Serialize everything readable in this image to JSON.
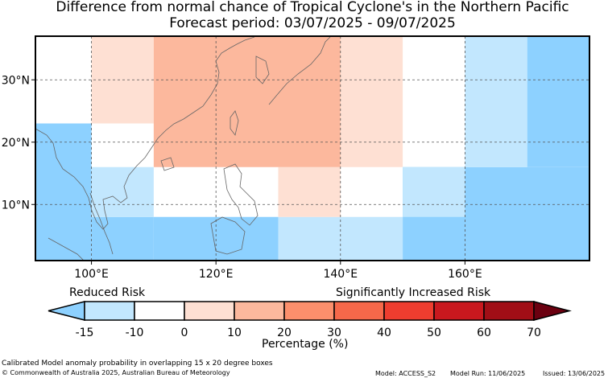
{
  "title": "Difference from normal chance of Tropical Cyclone's in the Northern Pacific",
  "subtitle": "Forecast period: 03/07/2025 - 09/07/2025",
  "map": {
    "lon_range": [
      91,
      180
    ],
    "lat_range": [
      1,
      37
    ],
    "lon_ticks": [
      {
        "value": 100,
        "label": "100°E"
      },
      {
        "value": 120,
        "label": "120°E"
      },
      {
        "value": 140,
        "label": "140°E"
      },
      {
        "value": 160,
        "label": "160°E"
      }
    ],
    "lat_ticks": [
      {
        "value": 10,
        "label": "10°N"
      },
      {
        "value": 20,
        "label": "20°N"
      },
      {
        "value": 30,
        "label": "30°N"
      }
    ],
    "gridlines": "dashed",
    "cells": [
      {
        "lon0": 91,
        "lon1": 100,
        "lat0": 1,
        "lat1": 23,
        "percent": -10
      },
      {
        "lon0": 100,
        "lon1": 110,
        "lat0": 1,
        "lat1": 8,
        "percent": -10
      },
      {
        "lon0": 110,
        "lon1": 130,
        "lat0": 1,
        "lat1": 8,
        "percent": -10
      },
      {
        "lon0": 130,
        "lon1": 150,
        "lat0": 1,
        "lat1": 8,
        "percent": -5
      },
      {
        "lon0": 150,
        "lon1": 180,
        "lat0": 1,
        "lat1": 16,
        "percent": -10
      },
      {
        "lon0": 150,
        "lon1": 160,
        "lat0": 8,
        "lat1": 16,
        "percent": -5
      },
      {
        "lon0": 100,
        "lon1": 110,
        "lat0": 8,
        "lat1": 16,
        "percent": -5
      },
      {
        "lon0": 130,
        "lon1": 140,
        "lat0": 8,
        "lat1": 16,
        "percent": 5
      },
      {
        "lon0": 100,
        "lon1": 110,
        "lat0": 23,
        "lat1": 37,
        "percent": 5
      },
      {
        "lon0": 110,
        "lon1": 140,
        "lat0": 16,
        "lat1": 37,
        "percent": 15
      },
      {
        "lon0": 140,
        "lon1": 150,
        "lat0": 16,
        "lat1": 37,
        "percent": 5
      },
      {
        "lon0": 160,
        "lon1": 170,
        "lat0": 16,
        "lat1": 37,
        "percent": -5
      },
      {
        "lon0": 170,
        "lon1": 180,
        "lat0": 16,
        "lat1": 37,
        "percent": -10
      }
    ]
  },
  "legend": {
    "reduced_label": "Reduced Risk",
    "increased_label": "Significantly Increased Risk",
    "ticks": [
      "-15",
      "-10",
      "0",
      "10",
      "20",
      "30",
      "40",
      "50",
      "60",
      "70"
    ],
    "colors": [
      "#8dd1ff",
      "#c2e7fe",
      "#ffffff",
      "#fee0d3",
      "#fcb89d",
      "#fc8f6c",
      "#f6684a",
      "#ee3d2f",
      "#c9181e",
      "#a10e16",
      "#6b0010"
    ],
    "axis_label": "Percentage (%)"
  },
  "footer": {
    "note": "Calibrated Model anomaly probability in overlapping 15 x 20 degree boxes",
    "copyright": "© Commonwealth of Australia 2025, Australian Bureau of Meteorology",
    "model": "Model: ACCESS_S2",
    "model_run": "Model Run: 11/06/2025",
    "issued": "Issued: 13/06/2025"
  }
}
